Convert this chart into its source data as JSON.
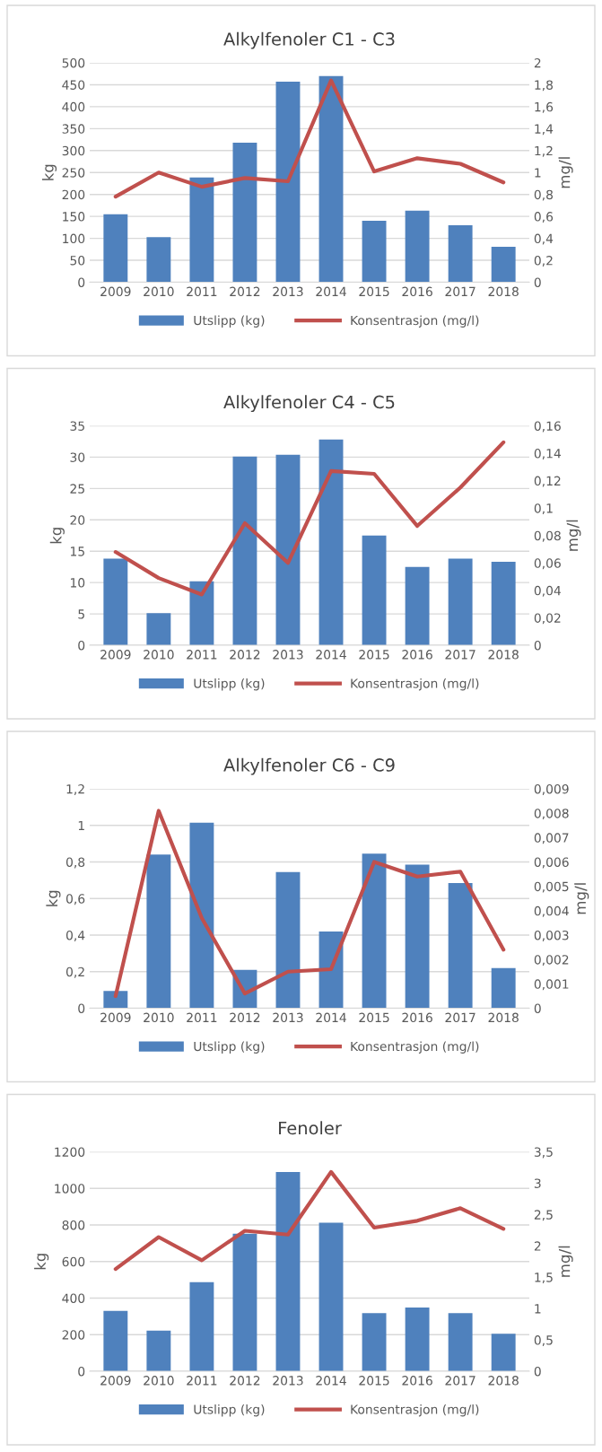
{
  "chart_data": [
    {
      "type": "bar",
      "title": "Alkylfenoler C1 - C3",
      "ylabel": "kg",
      "y2label": "mg/l",
      "categories": [
        "2009",
        "2010",
        "2011",
        "2012",
        "2013",
        "2014",
        "2015",
        "2016",
        "2017",
        "2018"
      ],
      "series": [
        {
          "name": "Utslipp (kg)",
          "color": "#4f81bd",
          "values": [
            155,
            103,
            239,
            318,
            457,
            470,
            140,
            163,
            130,
            81
          ]
        },
        {
          "name": "Konsentrasjon (mg/l)",
          "type": "line",
          "axis": "y2",
          "color": "#c0504d",
          "values": [
            0.78,
            1.0,
            0.87,
            0.95,
            0.92,
            1.84,
            1.01,
            1.13,
            1.08,
            0.91
          ]
        }
      ],
      "ylim": [
        0,
        500
      ],
      "yticks": [
        0,
        50,
        100,
        150,
        200,
        250,
        300,
        350,
        400,
        450,
        500
      ],
      "y2lim": [
        0,
        2
      ],
      "y2ticks": [
        0,
        {
          "value": 0.2,
          "label": "0,2"
        },
        {
          "value": 0.4,
          "label": "0,4"
        },
        {
          "value": 0.6,
          "label": "0,6"
        },
        {
          "value": 0.8,
          "label": "0,8"
        },
        1,
        {
          "value": 1.2,
          "label": "1,2"
        },
        {
          "value": 1.4,
          "label": "1,4"
        },
        {
          "value": 1.6,
          "label": "1,6"
        },
        {
          "value": 1.8,
          "label": "1,8"
        },
        2
      ],
      "grid": "y",
      "legend": "bottom"
    },
    {
      "type": "bar",
      "title": "Alkylfenoler C4 - C5",
      "ylabel": "kg",
      "y2label": "mg/l",
      "categories": [
        "2009",
        "2010",
        "2011",
        "2012",
        "2013",
        "2014",
        "2015",
        "2016",
        "2017",
        "2018"
      ],
      "series": [
        {
          "name": "Utslipp (kg)",
          "color": "#4f81bd",
          "values": [
            13.8,
            5.1,
            10.2,
            30.1,
            30.4,
            32.8,
            17.5,
            12.5,
            13.8,
            13.3
          ]
        },
        {
          "name": "Konsentrasjon (mg/l)",
          "type": "line",
          "axis": "y2",
          "color": "#c0504d",
          "values": [
            0.068,
            0.049,
            0.037,
            0.089,
            0.06,
            0.127,
            0.125,
            0.087,
            0.115,
            0.148
          ]
        }
      ],
      "ylim": [
        0,
        35
      ],
      "yticks": [
        0,
        5,
        10,
        15,
        20,
        25,
        30,
        35
      ],
      "y2lim": [
        0,
        0.16
      ],
      "y2ticks": [
        0,
        {
          "value": 0.02,
          "label": "0,02"
        },
        {
          "value": 0.04,
          "label": "0,04"
        },
        {
          "value": 0.06,
          "label": "0,06"
        },
        {
          "value": 0.08,
          "label": "0,08"
        },
        {
          "value": 0.1,
          "label": "0,1"
        },
        {
          "value": 0.12,
          "label": "0,12"
        },
        {
          "value": 0.14,
          "label": "0,14"
        },
        {
          "value": 0.16,
          "label": "0,16"
        }
      ],
      "grid": "y",
      "legend": "bottom"
    },
    {
      "type": "bar",
      "title": "Alkylfenoler C6 - C9",
      "ylabel": "kg",
      "y2label": "mg/l",
      "categories": [
        "2009",
        "2010",
        "2011",
        "2012",
        "2013",
        "2014",
        "2015",
        "2016",
        "2017",
        "2018"
      ],
      "series": [
        {
          "name": "Utslipp (kg)",
          "color": "#4f81bd",
          "values": [
            0.095,
            0.84,
            1.015,
            0.21,
            0.745,
            0.42,
            0.845,
            0.785,
            0.685,
            0.22
          ]
        },
        {
          "name": "Konsentrasjon (mg/l)",
          "type": "line",
          "axis": "y2",
          "color": "#c0504d",
          "values": [
            0.0005,
            0.0081,
            0.0037,
            0.0006,
            0.0015,
            0.0016,
            0.006,
            0.0054,
            0.0056,
            0.0024
          ]
        }
      ],
      "ylim": [
        0,
        1.2
      ],
      "yticks": [
        0,
        {
          "value": 0.2,
          "label": "0,2"
        },
        {
          "value": 0.4,
          "label": "0,4"
        },
        {
          "value": 0.6,
          "label": "0,6"
        },
        {
          "value": 0.8,
          "label": "0,8"
        },
        1,
        {
          "value": 1.2,
          "label": "1,2"
        }
      ],
      "y2lim": [
        0,
        0.009
      ],
      "y2ticks": [
        0,
        {
          "value": 0.001,
          "label": "0,001"
        },
        {
          "value": 0.002,
          "label": "0,002"
        },
        {
          "value": 0.003,
          "label": "0,003"
        },
        {
          "value": 0.004,
          "label": "0,004"
        },
        {
          "value": 0.005,
          "label": "0,005"
        },
        {
          "value": 0.006,
          "label": "0,006"
        },
        {
          "value": 0.007,
          "label": "0,007"
        },
        {
          "value": 0.008,
          "label": "0,008"
        },
        {
          "value": 0.009,
          "label": "0,009"
        }
      ],
      "grid": "y",
      "legend": "bottom"
    },
    {
      "type": "bar",
      "title": "Fenoler",
      "ylabel": "kg",
      "y2label": "mg/l",
      "categories": [
        "2009",
        "2010",
        "2011",
        "2012",
        "2013",
        "2014",
        "2015",
        "2016",
        "2017",
        "2018"
      ],
      "series": [
        {
          "name": "Utslipp (kg)",
          "color": "#4f81bd",
          "values": [
            330,
            222,
            487,
            752,
            1090,
            812,
            318,
            348,
            318,
            205
          ]
        },
        {
          "name": "Konsentrasjon (mg/l)",
          "type": "line",
          "axis": "y2",
          "color": "#c0504d",
          "values": [
            1.63,
            2.14,
            1.77,
            2.24,
            2.18,
            3.18,
            2.29,
            2.4,
            2.6,
            2.27
          ]
        }
      ],
      "ylim": [
        0,
        1200
      ],
      "yticks": [
        0,
        200,
        400,
        600,
        800,
        1000,
        1200
      ],
      "y2lim": [
        0,
        3.5
      ],
      "y2ticks": [
        0,
        {
          "value": 0.5,
          "label": "0,5"
        },
        1,
        {
          "value": 1.5,
          "label": "1,5"
        },
        2,
        {
          "value": 2.5,
          "label": "2,5"
        },
        3,
        {
          "value": 3.5,
          "label": "3,5"
        }
      ],
      "grid": "y",
      "legend": "bottom"
    }
  ]
}
